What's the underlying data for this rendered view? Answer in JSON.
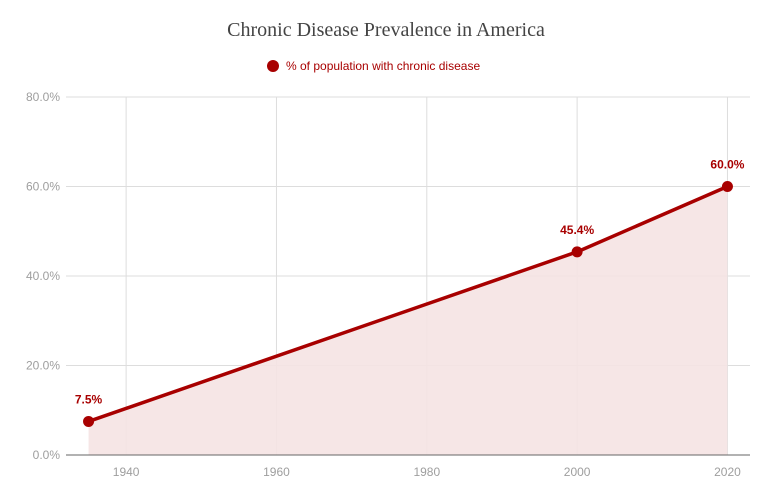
{
  "chart_data": {
    "type": "area",
    "title": "Chronic Disease Prevalence in America",
    "xlabel": "",
    "ylabel": "",
    "series": [
      {
        "name": "% of population with chronic disease",
        "x": [
          1935,
          2000,
          2020
        ],
        "values": [
          7.5,
          45.4,
          60.0
        ],
        "labels": [
          "7.5%",
          "45.4%",
          "60.0%"
        ]
      }
    ],
    "xlim": [
      1932,
      2023
    ],
    "ylim": [
      0,
      80
    ],
    "xticks": [
      1940,
      1960,
      1980,
      2000,
      2020
    ],
    "xtick_labels": [
      "1940",
      "1960",
      "1980",
      "2000",
      "2020"
    ],
    "yticks": [
      0,
      20,
      40,
      60,
      80
    ],
    "ytick_labels": [
      "0.0%",
      "20.0%",
      "40.0%",
      "60.0%",
      "80.0%"
    ],
    "grid": true,
    "legend_position": "top",
    "colors": {
      "line": "#a80000",
      "fill": "#f5e3e3",
      "grid": "#dddddd",
      "axis": "#666666"
    }
  }
}
